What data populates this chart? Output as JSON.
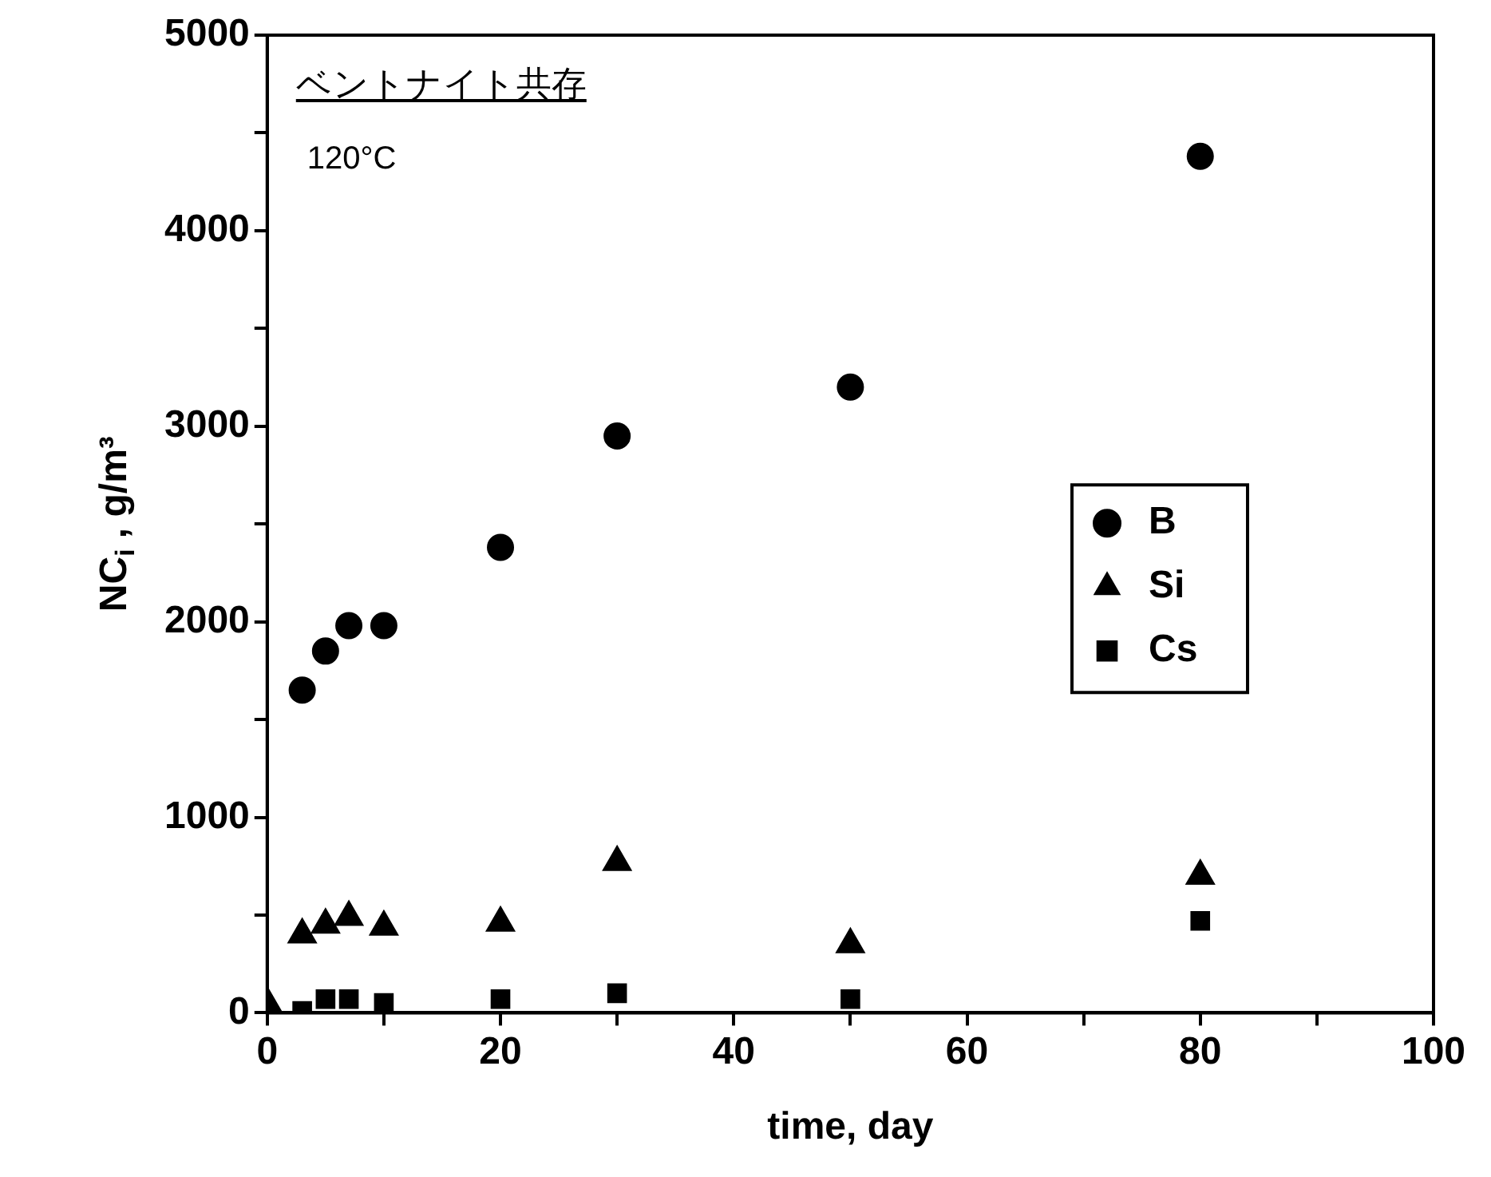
{
  "chart_data": {
    "type": "scatter",
    "xlabel": "time, day",
    "ylabel": "NC$_{i}$ , g/m³",
    "annotations": [
      "ベントナイト共存",
      "120°C"
    ],
    "x": [
      0,
      3,
      5,
      7,
      10,
      20,
      30,
      50,
      80
    ],
    "series": [
      {
        "name": "B",
        "color": "#000000",
        "marker": "circle",
        "x": [
          3,
          5,
          7,
          10,
          20,
          30,
          50,
          80
        ],
        "values": [
          1650,
          1850,
          1980,
          1980,
          2380,
          2950,
          3200,
          4380
        ]
      },
      {
        "name": "Si",
        "color": "#000000",
        "marker": "triangle",
        "values": [
          50,
          400,
          450,
          490,
          440,
          460,
          770,
          350,
          700
        ]
      },
      {
        "name": "Cs",
        "color": "#000000",
        "marker": "square",
        "x": [
          3,
          5,
          7,
          10,
          20,
          30,
          50,
          80
        ],
        "values": [
          10,
          70,
          70,
          50,
          70,
          100,
          70,
          470
        ]
      }
    ],
    "xlim": [
      0,
      100
    ],
    "xticks": [
      0,
      {
        "value": 10,
        "label": null
      },
      20,
      {
        "value": 30,
        "label": null
      },
      40,
      {
        "value": 50,
        "label": null
      },
      60,
      {
        "value": 70,
        "label": null
      },
      80,
      {
        "value": 90,
        "label": null
      },
      100
    ],
    "ylim": [
      0,
      5000
    ],
    "yticks": [
      0,
      {
        "value": 500,
        "label": null
      },
      1000,
      {
        "value": 1500,
        "label": null
      },
      2000,
      {
        "value": 2500,
        "label": null
      },
      3000,
      {
        "value": 3500,
        "label": null
      },
      4000,
      {
        "value": 4500,
        "label": null
      },
      5000
    ],
    "grid": false,
    "legend": "right"
  }
}
